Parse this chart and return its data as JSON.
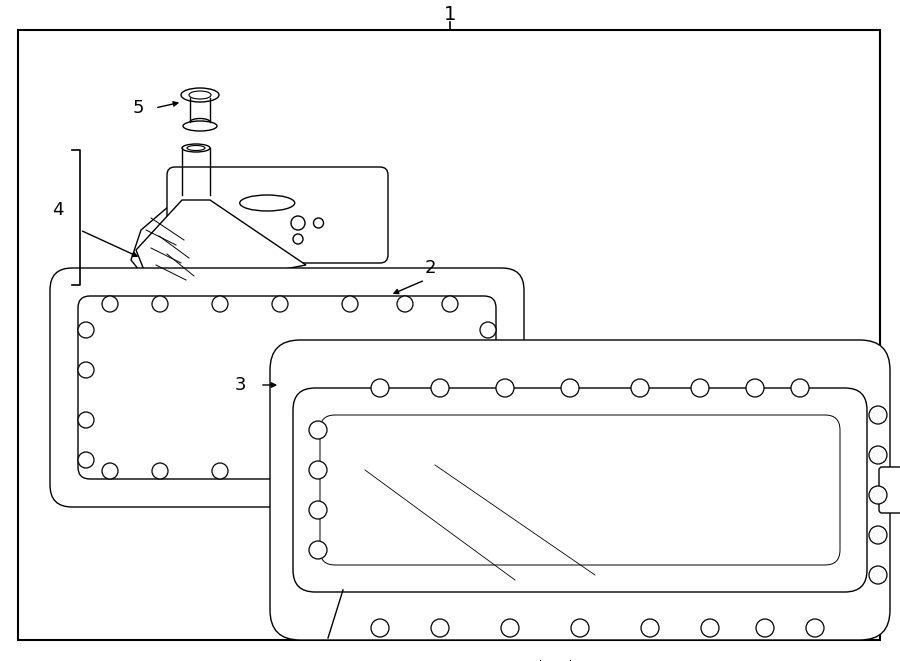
{
  "bg": "#ffffff",
  "lc": "#000000",
  "lw": 1.0,
  "figsize": [
    9.0,
    6.61
  ],
  "dpi": 100
}
